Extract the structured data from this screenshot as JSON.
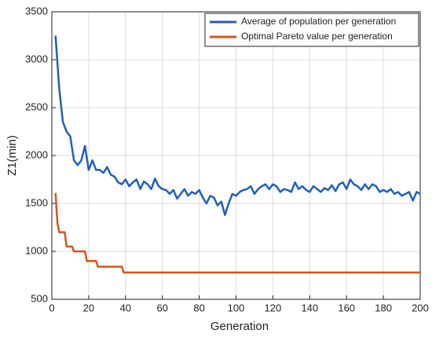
{
  "chart_data": {
    "type": "line",
    "xlabel": "Generation",
    "ylabel": "Z1(min)",
    "xlim": [
      0,
      200
    ],
    "xticks": [
      0,
      20,
      40,
      60,
      80,
      100,
      120,
      140,
      160,
      180,
      200
    ],
    "ylim": [
      500,
      3500
    ],
    "yticks": [
      500,
      1000,
      1500,
      2000,
      2500,
      3000,
      3500
    ],
    "grid": true,
    "legend": "upper right",
    "series": [
      {
        "name": "Average of population per generation",
        "color": "#1f5fbf",
        "x": [
          2,
          4,
          6,
          8,
          10,
          12,
          14,
          16,
          18,
          20,
          22,
          24,
          26,
          28,
          30,
          32,
          34,
          36,
          38,
          40,
          42,
          44,
          46,
          48,
          50,
          52,
          54,
          56,
          58,
          60,
          62,
          64,
          66,
          68,
          70,
          72,
          74,
          76,
          78,
          80,
          82,
          84,
          86,
          88,
          90,
          92,
          94,
          96,
          98,
          100,
          102,
          104,
          106,
          108,
          110,
          112,
          114,
          116,
          118,
          120,
          122,
          124,
          126,
          128,
          130,
          132,
          134,
          136,
          138,
          140,
          142,
          144,
          146,
          148,
          150,
          152,
          154,
          156,
          158,
          160,
          162,
          164,
          166,
          168,
          170,
          172,
          174,
          176,
          178,
          180,
          182,
          184,
          186,
          188,
          190,
          192,
          194,
          196,
          198,
          200
        ],
        "values": [
          3250,
          2700,
          2350,
          2250,
          2200,
          1950,
          1900,
          1950,
          2100,
          1850,
          1950,
          1850,
          1850,
          1820,
          1880,
          1800,
          1780,
          1720,
          1700,
          1750,
          1680,
          1720,
          1750,
          1650,
          1730,
          1700,
          1650,
          1760,
          1680,
          1650,
          1640,
          1600,
          1640,
          1550,
          1600,
          1650,
          1580,
          1620,
          1600,
          1640,
          1560,
          1500,
          1580,
          1560,
          1480,
          1520,
          1380,
          1500,
          1600,
          1580,
          1620,
          1640,
          1650,
          1680,
          1600,
          1650,
          1680,
          1700,
          1650,
          1700,
          1680,
          1620,
          1650,
          1640,
          1620,
          1720,
          1650,
          1680,
          1640,
          1620,
          1680,
          1650,
          1620,
          1660,
          1640,
          1690,
          1630,
          1700,
          1720,
          1650,
          1750,
          1700,
          1680,
          1640,
          1700,
          1650,
          1700,
          1680,
          1620,
          1640,
          1620,
          1650,
          1600,
          1620,
          1580,
          1600,
          1620,
          1530,
          1620,
          1600
        ]
      },
      {
        "name": "Optimal Pareto value per generation",
        "color": "#d95319",
        "x": [
          2,
          3,
          4,
          7,
          8,
          11,
          12,
          18,
          19,
          24,
          25,
          38,
          39,
          200
        ],
        "values": [
          1610,
          1300,
          1200,
          1200,
          1050,
          1050,
          1000,
          1000,
          900,
          900,
          840,
          840,
          780,
          780
        ]
      }
    ]
  }
}
